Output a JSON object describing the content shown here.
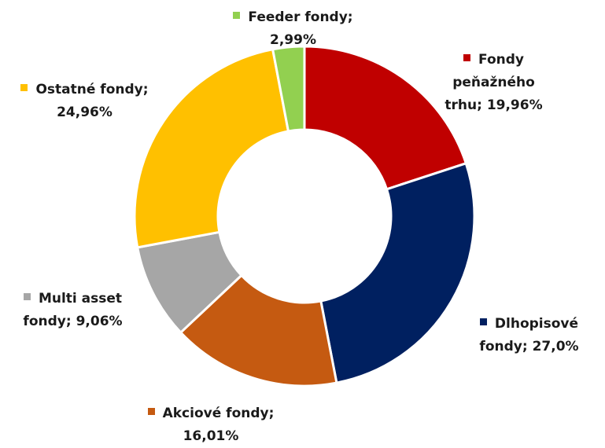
{
  "chart_data": {
    "type": "donut",
    "categories": [
      "Fondy peňažného trhu;",
      "Dlhopisové fondy;",
      "Akciové fondy;",
      "Multi asset fondy;",
      "Ostatné fondy;",
      "Feeder fondy;"
    ],
    "values": [
      19.96,
      27.0,
      16.01,
      9.06,
      24.96,
      2.99
    ],
    "value_labels": [
      "19,96%",
      "27,0%",
      "16,01%",
      "9,06%",
      "24,96%",
      "2,99%"
    ],
    "colors": [
      "#c00000",
      "#002060",
      "#c55a11",
      "#a6a6a6",
      "#ffc000",
      "#92d050"
    ]
  }
}
